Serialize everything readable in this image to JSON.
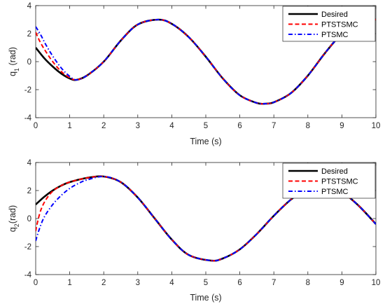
{
  "chart_data": [
    {
      "type": "line",
      "xlabel": "Time (s)",
      "ylabel": {
        "main": "q",
        "sub": "1",
        "unit": " (rad)"
      },
      "xlim": [
        0,
        10
      ],
      "ylim": [
        -4,
        4
      ],
      "xticks": [
        "0",
        "1",
        "2",
        "3",
        "4",
        "5",
        "6",
        "7",
        "8",
        "9",
        "10"
      ],
      "yticks": [
        "-4",
        "-2",
        "0",
        "2",
        "4"
      ],
      "grid": false,
      "legend_position": "top-right",
      "series": [
        {
          "name": "Desired",
          "color": "#000000",
          "style": "solid",
          "x": [
            0,
            0.25,
            0.5,
            0.75,
            1.0,
            1.2,
            1.5,
            2.0,
            2.5,
            3.0,
            3.6,
            4.0,
            4.5,
            5.0,
            5.5,
            6.0,
            6.5,
            6.75,
            7.0,
            7.5,
            8.0,
            8.5,
            9.0,
            9.5,
            9.85,
            10.0
          ],
          "y": [
            1.0,
            0.25,
            -0.35,
            -0.85,
            -1.2,
            -1.3,
            -1.0,
            0.0,
            1.5,
            2.65,
            3.0,
            2.7,
            1.75,
            0.35,
            -1.2,
            -2.4,
            -2.95,
            -3.0,
            -2.9,
            -2.25,
            -1.0,
            0.6,
            2.0,
            2.85,
            3.0,
            3.0
          ]
        },
        {
          "name": "PTSTSMC",
          "color": "#ff0000",
          "style": "dashed",
          "x": [
            0,
            0.1,
            0.25,
            0.5,
            0.75,
            1.0,
            1.2,
            1.5,
            2.0,
            2.5,
            3.0,
            3.6,
            4.0,
            4.5,
            5.0,
            5.5,
            6.0,
            6.5,
            6.75,
            7.0,
            7.5,
            8.0,
            8.5,
            9.0,
            9.5,
            9.85,
            10.0
          ],
          "y": [
            2.1,
            1.55,
            0.9,
            0.0,
            -0.7,
            -1.15,
            -1.3,
            -1.0,
            0.0,
            1.5,
            2.65,
            3.0,
            2.7,
            1.75,
            0.35,
            -1.2,
            -2.4,
            -2.95,
            -3.0,
            -2.9,
            -2.25,
            -1.0,
            0.6,
            2.0,
            2.85,
            3.0,
            3.0
          ]
        },
        {
          "name": "PTSMC",
          "color": "#0000ff",
          "style": "dashdot",
          "x": [
            0,
            0.15,
            0.3,
            0.5,
            0.75,
            1.0,
            1.2,
            1.5,
            2.0,
            2.5,
            3.0,
            3.6,
            4.0,
            4.5,
            5.0,
            5.5,
            6.0,
            6.5,
            6.75,
            7.0,
            7.5,
            8.0,
            8.5,
            9.0,
            9.5,
            9.85,
            10.0
          ],
          "y": [
            2.5,
            1.9,
            1.2,
            0.4,
            -0.45,
            -1.05,
            -1.3,
            -1.0,
            0.0,
            1.5,
            2.65,
            3.0,
            2.7,
            1.75,
            0.35,
            -1.2,
            -2.4,
            -2.95,
            -3.0,
            -2.9,
            -2.25,
            -1.0,
            0.6,
            2.0,
            2.85,
            3.0,
            3.0
          ]
        }
      ]
    },
    {
      "type": "line",
      "xlabel": "Time (s)",
      "ylabel": {
        "main": "q",
        "sub": "2",
        "unit": "(rad)"
      },
      "xlim": [
        0,
        10
      ],
      "ylim": [
        -4,
        4
      ],
      "xticks": [
        "0",
        "1",
        "2",
        "3",
        "4",
        "5",
        "6",
        "7",
        "8",
        "9",
        "10"
      ],
      "yticks": [
        "-4",
        "-2",
        "0",
        "2",
        "4"
      ],
      "grid": false,
      "legend_position": "top-right",
      "series": [
        {
          "name": "Desired",
          "color": "#000000",
          "style": "solid",
          "x": [
            0,
            0.25,
            0.5,
            0.75,
            1.0,
            1.5,
            2.0,
            2.5,
            3.0,
            3.5,
            4.0,
            4.5,
            5.15,
            5.5,
            6.0,
            6.5,
            7.0,
            7.5,
            8.0,
            8.3,
            8.6,
            9.0,
            9.5,
            10.0
          ],
          "y": [
            1.0,
            1.55,
            2.0,
            2.35,
            2.6,
            2.9,
            3.0,
            2.6,
            1.5,
            0.0,
            -1.5,
            -2.6,
            -3.0,
            -2.85,
            -2.2,
            -1.1,
            0.2,
            1.35,
            2.15,
            2.4,
            2.3,
            1.9,
            0.9,
            -0.4
          ]
        },
        {
          "name": "PTSTSMC",
          "color": "#ff0000",
          "style": "dashed",
          "x": [
            0,
            0.05,
            0.15,
            0.3,
            0.5,
            0.75,
            1.0,
            1.5,
            2.0,
            2.5,
            3.0,
            3.5,
            4.0,
            4.5,
            5.15,
            5.5,
            6.0,
            6.5,
            7.0,
            7.5,
            8.0,
            8.3,
            8.6,
            9.0,
            9.5,
            10.0
          ],
          "y": [
            -0.9,
            -0.3,
            0.6,
            1.35,
            1.95,
            2.35,
            2.6,
            2.9,
            3.0,
            2.6,
            1.5,
            0.0,
            -1.5,
            -2.6,
            -3.0,
            -2.85,
            -2.2,
            -1.1,
            0.2,
            1.35,
            2.15,
            2.4,
            2.3,
            1.9,
            0.9,
            -0.4
          ]
        },
        {
          "name": "PTSMC",
          "color": "#0000ff",
          "style": "dashdot",
          "x": [
            0,
            0.1,
            0.25,
            0.5,
            0.75,
            1.0,
            1.25,
            1.5,
            2.0,
            2.5,
            3.0,
            3.5,
            4.0,
            4.5,
            5.15,
            5.5,
            6.0,
            6.5,
            7.0,
            7.5,
            8.0,
            8.3,
            8.6,
            9.0,
            9.5,
            10.0
          ],
          "y": [
            -1.6,
            -0.8,
            0.1,
            1.0,
            1.65,
            2.15,
            2.5,
            2.75,
            3.0,
            2.6,
            1.5,
            0.0,
            -1.5,
            -2.6,
            -3.0,
            -2.85,
            -2.2,
            -1.1,
            0.2,
            1.35,
            2.15,
            2.4,
            2.3,
            1.9,
            0.9,
            -0.4
          ]
        }
      ]
    }
  ]
}
